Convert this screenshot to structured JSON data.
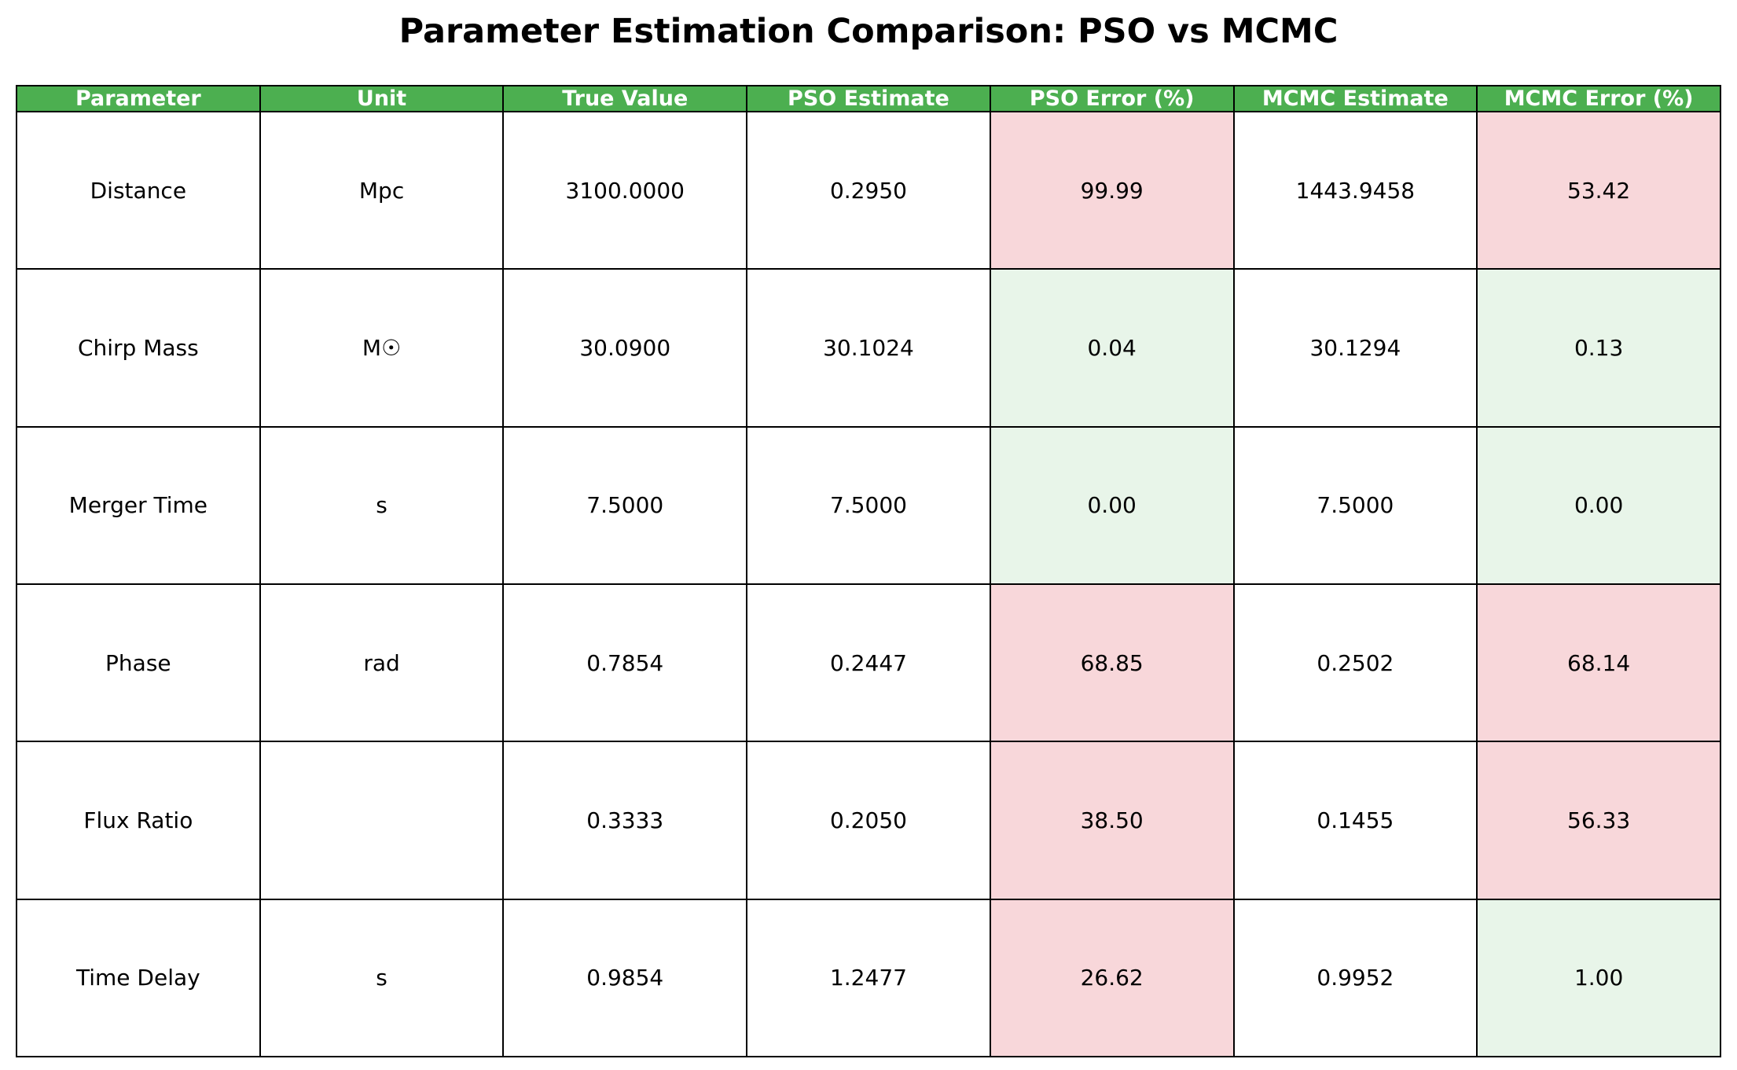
{
  "chart_data": {
    "type": "table",
    "title": "Parameter Estimation Comparison: PSO vs MCMC",
    "columns": [
      "Parameter",
      "Unit",
      "True Value",
      "PSO Estimate",
      "PSO Error (%)",
      "MCMC Estimate",
      "MCMC Error (%)"
    ],
    "rows": [
      [
        "Distance",
        "Mpc",
        "3100.0000",
        "0.2950",
        "99.99",
        "1443.9458",
        "53.42"
      ],
      [
        "Chirp Mass",
        "M☉",
        "30.0900",
        "30.1024",
        "0.04",
        "30.1294",
        "0.13"
      ],
      [
        "Merger Time",
        "s",
        "7.5000",
        "7.5000",
        "0.00",
        "7.5000",
        "0.00"
      ],
      [
        "Phase",
        "rad",
        "0.7854",
        "0.2447",
        "68.85",
        "0.2502",
        "68.14"
      ],
      [
        "Flux Ratio",
        "",
        "0.3333",
        "0.2050",
        "38.50",
        "0.1455",
        "56.33"
      ],
      [
        "Time Delay",
        "s",
        "0.9854",
        "1.2477",
        "26.62",
        "0.9952",
        "1.00"
      ]
    ],
    "error_columns": [
      4,
      6
    ],
    "error_threshold_percent": 10,
    "colors": {
      "header_bg": "#4caf50",
      "header_text": "#ffffff",
      "cell_bg": "#ffffff",
      "high_error_bg": "#f8d7da",
      "low_error_bg": "#e8f5e9",
      "border": "#000000"
    }
  }
}
